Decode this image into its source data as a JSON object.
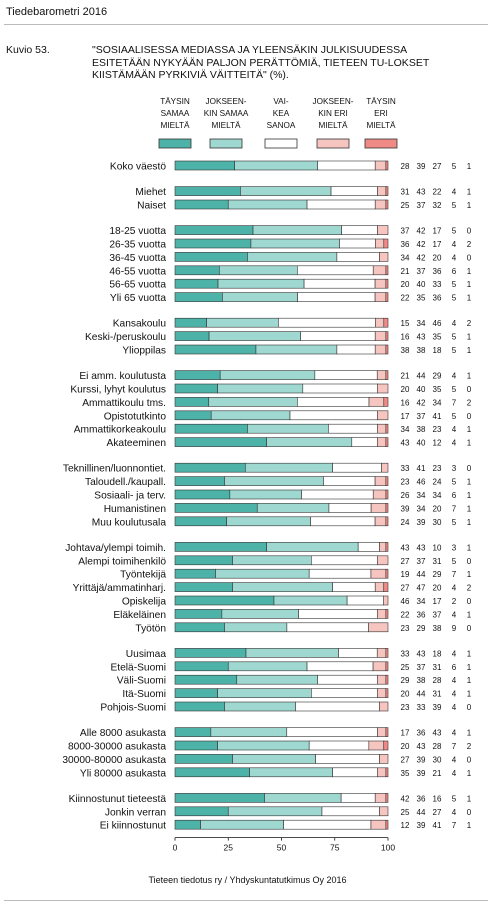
{
  "header": {
    "title": "Tiedebarometri 2016"
  },
  "figure": {
    "number": "Kuvio 53.",
    "title": "\"SOSIAALISESSA MEDIASSA JA YLEENSÄKIN JULKISUUDESSA ESITETÄÄN NYKYÄÄN PALJON PERÄTTÖMIÄ, TIETEEN TU-LOKSET KIISTÄMÄÄN PYRKIVIÄ VÄITTEITÄ\" (%).",
    "source": "Tieteen tiedotus ry / Yhdyskuntatutkimus Oy 2016"
  },
  "colors": {
    "fully_agree": "#4db3a8",
    "somewhat_agree": "#9fd8d0",
    "cannot_say": "#ffffff",
    "somewhat_disagree": "#f7c5c0",
    "fully_disagree": "#f08a86",
    "bar_border": "#333333"
  },
  "chart_data": {
    "type": "bar",
    "orientation": "horizontal",
    "stacked": true,
    "title": "\"SOSIAALISESSA MEDIASSA JA YLEENSÄKIN JULKISUUDESSA ESITETÄÄN NYKYÄÄN PALJON PERÄTTÖMIÄ, TIETEEN TU-LOKSET KIISTÄMÄÄN PYRKIVIÄ VÄITTEITÄ\" (%).",
    "xlim": [
      0,
      100
    ],
    "xticks": [
      "0",
      "25",
      "50",
      "75",
      "100"
    ],
    "legend_position": "top",
    "series": [
      {
        "name": "TÄYSIN SAMAA MIELTÄ",
        "lines": [
          "TÄYSIN",
          "SAMAA",
          "MIELTÄ"
        ]
      },
      {
        "name": "JOKSEEN-KIN SAMAA MIELTÄ",
        "lines": [
          "JOKSEEN-",
          "KIN SAMAA",
          "MIELTÄ"
        ]
      },
      {
        "name": "VAI-KEA SANOA",
        "lines": [
          "VAI-",
          "KEA",
          "SANOA"
        ]
      },
      {
        "name": "JOKSEEN-KIN ERI MIELTÄ",
        "lines": [
          "JOKSEEN-",
          "KIN ERI",
          "MIELTÄ"
        ]
      },
      {
        "name": "TÄYSIN ERI MIELTÄ",
        "lines": [
          "TÄYSIN",
          "ERI",
          "MIELTÄ"
        ]
      }
    ],
    "groups": [
      {
        "rows": [
          {
            "label": "Koko väestö",
            "values": [
              28,
              39,
              27,
              5,
              1
            ]
          }
        ]
      },
      {
        "rows": [
          {
            "label": "Miehet",
            "values": [
              31,
              43,
              22,
              4,
              1
            ]
          },
          {
            "label": "Naiset",
            "values": [
              25,
              37,
              32,
              5,
              1
            ]
          }
        ]
      },
      {
        "rows": [
          {
            "label": "18-25 vuotta",
            "values": [
              37,
              42,
              17,
              5,
              0
            ]
          },
          {
            "label": "26-35 vuotta",
            "values": [
              36,
              42,
              17,
              4,
              2
            ]
          },
          {
            "label": "36-45 vuotta",
            "values": [
              34,
              42,
              20,
              4,
              0
            ]
          },
          {
            "label": "46-55 vuotta",
            "values": [
              21,
              37,
              36,
              6,
              1
            ]
          },
          {
            "label": "56-65 vuotta",
            "values": [
              20,
              40,
              33,
              5,
              1
            ]
          },
          {
            "label": "Yli 65 vuotta",
            "values": [
              22,
              35,
              36,
              5,
              1
            ]
          }
        ]
      },
      {
        "rows": [
          {
            "label": "Kansakoulu",
            "values": [
              15,
              34,
              46,
              4,
              2
            ]
          },
          {
            "label": "Keski-/peruskoulu",
            "values": [
              16,
              43,
              35,
              5,
              1
            ]
          },
          {
            "label": "Ylioppilas",
            "values": [
              38,
              38,
              18,
              5,
              1
            ]
          }
        ]
      },
      {
        "rows": [
          {
            "label": "Ei amm. koulutusta",
            "values": [
              21,
              44,
              29,
              4,
              1
            ]
          },
          {
            "label": "Kurssi, lyhyt koulutus",
            "values": [
              20,
              40,
              35,
              5,
              0
            ]
          },
          {
            "label": "Ammattikoulu tms.",
            "values": [
              16,
              42,
              34,
              7,
              2
            ]
          },
          {
            "label": "Opistotutkinto",
            "values": [
              17,
              37,
              41,
              5,
              0
            ]
          },
          {
            "label": "Ammattikorkeakoulu",
            "values": [
              34,
              38,
              23,
              4,
              1
            ]
          },
          {
            "label": "Akateeminen",
            "values": [
              43,
              40,
              12,
              4,
              1
            ]
          }
        ]
      },
      {
        "rows": [
          {
            "label": "Teknillinen/luonnontiet.",
            "values": [
              33,
              41,
              23,
              3,
              0
            ]
          },
          {
            "label": "Taloudell./kaupall.",
            "values": [
              23,
              46,
              24,
              5,
              1
            ]
          },
          {
            "label": "Sosiaali- ja terv.",
            "values": [
              26,
              34,
              34,
              6,
              1
            ]
          },
          {
            "label": "Humanistinen",
            "values": [
              39,
              34,
              20,
              7,
              1
            ]
          },
          {
            "label": "Muu koulutusala",
            "values": [
              24,
              39,
              30,
              5,
              1
            ]
          }
        ]
      },
      {
        "rows": [
          {
            "label": "Johtava/ylempi toimih.",
            "values": [
              43,
              43,
              10,
              3,
              1
            ]
          },
          {
            "label": "Alempi toimihenkilö",
            "values": [
              27,
              37,
              31,
              5,
              0
            ]
          },
          {
            "label": "Työntekijä",
            "values": [
              19,
              44,
              29,
              7,
              1
            ]
          },
          {
            "label": "Yrittäjä/ammatinharj.",
            "values": [
              27,
              47,
              20,
              4,
              2
            ]
          },
          {
            "label": "Opiskelija",
            "values": [
              46,
              34,
              17,
              2,
              0
            ]
          },
          {
            "label": "Eläkeläinen",
            "values": [
              22,
              36,
              37,
              4,
              1
            ]
          },
          {
            "label": "Työtön",
            "values": [
              23,
              29,
              38,
              9,
              0
            ]
          }
        ]
      },
      {
        "rows": [
          {
            "label": "Uusimaa",
            "values": [
              33,
              43,
              18,
              4,
              1
            ]
          },
          {
            "label": "Etelä-Suomi",
            "values": [
              25,
              37,
              31,
              6,
              1
            ]
          },
          {
            "label": "Väli-Suomi",
            "values": [
              29,
              38,
              28,
              4,
              1
            ]
          },
          {
            "label": "Itä-Suomi",
            "values": [
              20,
              44,
              31,
              4,
              1
            ]
          },
          {
            "label": "Pohjois-Suomi",
            "values": [
              23,
              33,
              39,
              4,
              0
            ]
          }
        ]
      },
      {
        "rows": [
          {
            "label": "Alle 8000 asukasta",
            "values": [
              17,
              36,
              43,
              4,
              1
            ]
          },
          {
            "label": "8000-30000 asukasta",
            "values": [
              20,
              43,
              28,
              7,
              2
            ]
          },
          {
            "label": "30000-80000 asukasta",
            "values": [
              27,
              39,
              30,
              4,
              0
            ]
          },
          {
            "label": "Yli 80000 asukasta",
            "values": [
              35,
              39,
              21,
              4,
              1
            ]
          }
        ]
      },
      {
        "rows": [
          {
            "label": "Kiinnostunut tieteestä",
            "values": [
              42,
              36,
              16,
              5,
              1
            ]
          },
          {
            "label": "Jonkin verran",
            "values": [
              25,
              44,
              27,
              4,
              0
            ]
          },
          {
            "label": "Ei kiinnostunut",
            "values": [
              12,
              39,
              41,
              7,
              1
            ]
          }
        ]
      }
    ]
  }
}
